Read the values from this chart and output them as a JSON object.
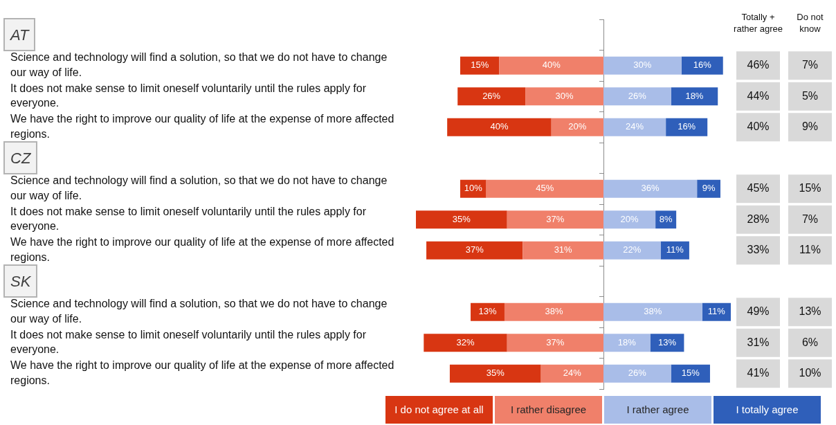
{
  "chart_data": [
    {
      "type": "bar",
      "orientation": "horizontal",
      "stacked": true,
      "categories": [
        "AT",
        "Science and technology will find a solution, so that we do not have to change our way of life.",
        "It does not make sense to limit oneself voluntarily until the rules apply for everyone.",
        "We have the right to improve our quality of life at the expense of more affected regions.",
        "CZ",
        "Science and technology will find a solution, so that we do not have to change our way of life.",
        "It does not make sense to limit oneself voluntarily until the rules apply for everyone.",
        "We have the right to improve our quality of life at the expense of more affected regions.",
        "SK",
        "Science and technology will find a solution, so that we do not have to change our way of life.",
        "It does not make sense to limit oneself voluntarily until the rules apply for everyone.",
        "We have the right to improve our quality of life at the expense of more affected regions."
      ],
      "series": [
        {
          "name": "I rather disagree",
          "color": "#f0806a",
          "values": [
            null,
            40,
            30,
            20,
            null,
            45,
            37,
            31,
            null,
            38,
            37,
            24
          ],
          "value_labels": [
            null,
            "40%",
            "30%",
            "20%",
            null,
            "45%",
            "37%",
            "31%",
            null,
            "38%",
            "37%",
            "24%"
          ]
        },
        {
          "name": "I do not agree at all",
          "color": "#d83612",
          "values": [
            null,
            15,
            26,
            40,
            null,
            10,
            35,
            37,
            null,
            13,
            32,
            35
          ],
          "value_labels": [
            null,
            "15%",
            "26%",
            "40%",
            null,
            "10%",
            "35%",
            "37%",
            null,
            "13%",
            "32%",
            "35%"
          ]
        }
      ],
      "xlim": [
        72,
        0
      ],
      "legend": "bottom",
      "tick_labels": "y"
    },
    {
      "type": "bar",
      "orientation": "horizontal",
      "stacked": true,
      "categories": [
        null,
        null,
        null,
        null,
        null,
        null,
        null,
        null,
        null,
        null,
        null,
        null
      ],
      "series": [
        {
          "name": "I rather agree",
          "color": "#a9bde8",
          "values": [
            null,
            30,
            26,
            24,
            null,
            36,
            20,
            22,
            null,
            38,
            18,
            26
          ],
          "value_labels": [
            null,
            "30%",
            "26%",
            "24%",
            null,
            "36%",
            "20%",
            "22%",
            null,
            "38%",
            "18%",
            "26%"
          ]
        },
        {
          "name": "I totally agree",
          "color": "#2f5fba",
          "values": [
            null,
            16,
            18,
            16,
            null,
            9,
            8,
            11,
            null,
            11,
            13,
            15
          ],
          "value_labels": [
            null,
            "16%",
            "18%",
            "16%",
            null,
            "9%",
            "8%",
            "11%",
            null,
            "11%",
            "13%",
            "15%"
          ]
        }
      ],
      "xlim": [
        0,
        49
      ],
      "legend": "bottom",
      "tick_labels": false
    },
    {
      "type": "heatmap",
      "categories": [
        "Totally + rather agree",
        "Do not know"
      ],
      "y_categories": [
        null,
        null,
        null,
        null,
        null,
        null,
        null,
        null,
        null
      ],
      "cells": [
        [
          46,
          7
        ],
        [
          44,
          5
        ],
        [
          40,
          9
        ],
        [
          45,
          15
        ],
        [
          28,
          7
        ],
        [
          33,
          11
        ],
        [
          49,
          13
        ],
        [
          31,
          6
        ],
        [
          41,
          10
        ]
      ],
      "cell_labels": [
        [
          "46%",
          "7%"
        ],
        [
          "44%",
          "5%"
        ],
        [
          "40%",
          "9%"
        ],
        [
          "45%",
          "15%"
        ],
        [
          "28%",
          "7%"
        ],
        [
          "33%",
          "11%"
        ],
        [
          "49%",
          "13%"
        ],
        [
          "31%",
          "6%"
        ],
        [
          "41%",
          "10%"
        ]
      ],
      "color": "#d9d9d9"
    }
  ]
}
